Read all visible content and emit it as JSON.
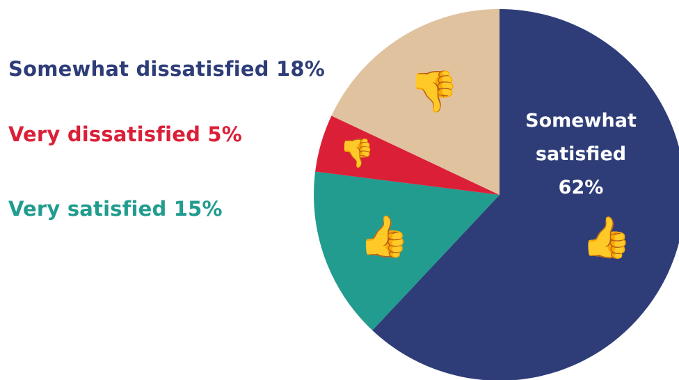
{
  "chart_data": {
    "type": "pie",
    "title": "",
    "slices": [
      {
        "label": "Somewhat satisfied",
        "value": 62,
        "display": "62%",
        "color": "#2e3d78",
        "icon": "thumbs-up-icon"
      },
      {
        "label": "Very satisfied",
        "value": 15,
        "display": "15%",
        "color": "#219c8f",
        "icon": "thumbs-up-icon"
      },
      {
        "label": "Very dissatisfied",
        "value": 5,
        "display": "5%",
        "color": "#da1f37",
        "icon": "thumbs-down-icon"
      },
      {
        "label": "Somewhat dissatisfied",
        "value": 18,
        "display": "18%",
        "color": "#e0c29f",
        "icon": "thumbs-down-icon"
      }
    ]
  },
  "labels": {
    "somewhat_dissatisfied": "Somewhat dissatisfied 18%",
    "very_dissatisfied": "Very dissatisfied 5%",
    "very_satisfied": "Very satisfied 15%",
    "somewhat_satisfied_line1": "Somewhat",
    "somewhat_satisfied_line2": "satisfied",
    "somewhat_satisfied_line3": "62%"
  }
}
